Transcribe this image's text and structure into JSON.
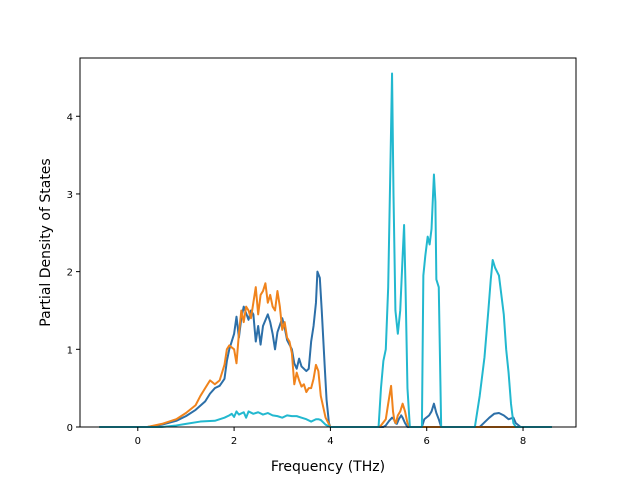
{
  "chart_data": {
    "type": "line",
    "title": "",
    "xlabel": "Frequency (THz)",
    "ylabel": "Partial Density of States",
    "xlim": [
      -1.2,
      9.1
    ],
    "ylim": [
      0,
      4.75
    ],
    "xticks": [
      0,
      2,
      4,
      6,
      8
    ],
    "yticks": [
      0,
      1,
      2,
      3,
      4
    ],
    "grid": false,
    "legend": "none",
    "series": [
      {
        "color": "#2c6fa8",
        "points": [
          [
            -0.8,
            0
          ],
          [
            0.2,
            0
          ],
          [
            0.5,
            0.03
          ],
          [
            0.8,
            0.08
          ],
          [
            1.0,
            0.14
          ],
          [
            1.2,
            0.22
          ],
          [
            1.4,
            0.33
          ],
          [
            1.5,
            0.43
          ],
          [
            1.6,
            0.5
          ],
          [
            1.7,
            0.53
          ],
          [
            1.8,
            0.62
          ],
          [
            1.85,
            0.85
          ],
          [
            1.9,
            1.0
          ],
          [
            2.0,
            1.2
          ],
          [
            2.05,
            1.42
          ],
          [
            2.1,
            1.15
          ],
          [
            2.15,
            1.4
          ],
          [
            2.2,
            1.55
          ],
          [
            2.3,
            1.38
          ],
          [
            2.35,
            1.5
          ],
          [
            2.4,
            1.45
          ],
          [
            2.45,
            1.1
          ],
          [
            2.5,
            1.3
          ],
          [
            2.55,
            1.06
          ],
          [
            2.6,
            1.3
          ],
          [
            2.7,
            1.45
          ],
          [
            2.75,
            1.35
          ],
          [
            2.8,
            1.2
          ],
          [
            2.85,
            1.0
          ],
          [
            2.9,
            1.22
          ],
          [
            3.0,
            1.4
          ],
          [
            3.05,
            1.28
          ],
          [
            3.1,
            1.12
          ],
          [
            3.2,
            1.0
          ],
          [
            3.25,
            0.82
          ],
          [
            3.3,
            0.75
          ],
          [
            3.35,
            0.88
          ],
          [
            3.4,
            0.78
          ],
          [
            3.5,
            0.72
          ],
          [
            3.55,
            0.75
          ],
          [
            3.6,
            1.1
          ],
          [
            3.65,
            1.3
          ],
          [
            3.7,
            1.6
          ],
          [
            3.73,
            2.0
          ],
          [
            3.78,
            1.92
          ],
          [
            3.82,
            1.5
          ],
          [
            3.88,
            0.8
          ],
          [
            3.92,
            0.35
          ],
          [
            3.97,
            0.05
          ],
          [
            4.0,
            0
          ],
          [
            5.1,
            0
          ],
          [
            5.15,
            0.02
          ],
          [
            5.22,
            0.08
          ],
          [
            5.28,
            0.12
          ],
          [
            5.32,
            0.1
          ],
          [
            5.35,
            0.05
          ],
          [
            5.38,
            0.04
          ],
          [
            5.42,
            0.1
          ],
          [
            5.47,
            0.15
          ],
          [
            5.5,
            0.12
          ],
          [
            5.55,
            0.05
          ],
          [
            5.6,
            0
          ],
          [
            5.9,
            0
          ],
          [
            5.95,
            0.1
          ],
          [
            6.05,
            0.15
          ],
          [
            6.1,
            0.2
          ],
          [
            6.15,
            0.3
          ],
          [
            6.2,
            0.18
          ],
          [
            6.25,
            0.1
          ],
          [
            6.3,
            0
          ],
          [
            7.0,
            0
          ],
          [
            7.1,
            0
          ],
          [
            7.2,
            0.06
          ],
          [
            7.3,
            0.12
          ],
          [
            7.4,
            0.17
          ],
          [
            7.5,
            0.18
          ],
          [
            7.6,
            0.15
          ],
          [
            7.7,
            0.1
          ],
          [
            7.8,
            0.12
          ],
          [
            7.85,
            0.05
          ],
          [
            7.95,
            0
          ],
          [
            8.6,
            0
          ]
        ]
      },
      {
        "color": "#f0831c",
        "points": [
          [
            -0.8,
            0
          ],
          [
            0.2,
            0
          ],
          [
            0.5,
            0.04
          ],
          [
            0.8,
            0.1
          ],
          [
            1.0,
            0.18
          ],
          [
            1.2,
            0.28
          ],
          [
            1.3,
            0.4
          ],
          [
            1.4,
            0.5
          ],
          [
            1.5,
            0.6
          ],
          [
            1.6,
            0.55
          ],
          [
            1.7,
            0.6
          ],
          [
            1.8,
            0.8
          ],
          [
            1.85,
            1.0
          ],
          [
            1.9,
            1.05
          ],
          [
            2.0,
            1.0
          ],
          [
            2.05,
            0.82
          ],
          [
            2.1,
            1.2
          ],
          [
            2.15,
            1.5
          ],
          [
            2.2,
            1.35
          ],
          [
            2.25,
            1.55
          ],
          [
            2.3,
            1.5
          ],
          [
            2.35,
            1.4
          ],
          [
            2.4,
            1.6
          ],
          [
            2.45,
            1.8
          ],
          [
            2.5,
            1.45
          ],
          [
            2.55,
            1.7
          ],
          [
            2.6,
            1.75
          ],
          [
            2.65,
            1.85
          ],
          [
            2.7,
            1.6
          ],
          [
            2.75,
            1.7
          ],
          [
            2.8,
            1.55
          ],
          [
            2.85,
            1.5
          ],
          [
            2.9,
            1.75
          ],
          [
            2.95,
            1.55
          ],
          [
            3.0,
            1.25
          ],
          [
            3.05,
            1.35
          ],
          [
            3.1,
            1.15
          ],
          [
            3.15,
            1.1
          ],
          [
            3.2,
            0.95
          ],
          [
            3.25,
            0.55
          ],
          [
            3.3,
            0.7
          ],
          [
            3.35,
            0.6
          ],
          [
            3.4,
            0.52
          ],
          [
            3.45,
            0.55
          ],
          [
            3.5,
            0.45
          ],
          [
            3.55,
            0.5
          ],
          [
            3.6,
            0.5
          ],
          [
            3.65,
            0.62
          ],
          [
            3.7,
            0.8
          ],
          [
            3.75,
            0.72
          ],
          [
            3.8,
            0.4
          ],
          [
            3.9,
            0.12
          ],
          [
            4.0,
            0
          ],
          [
            5.0,
            0
          ],
          [
            5.05,
            0.02
          ],
          [
            5.15,
            0.1
          ],
          [
            5.2,
            0.3
          ],
          [
            5.26,
            0.53
          ],
          [
            5.3,
            0.2
          ],
          [
            5.33,
            0.08
          ],
          [
            5.36,
            0.05
          ],
          [
            5.4,
            0.15
          ],
          [
            5.45,
            0.2
          ],
          [
            5.5,
            0.3
          ],
          [
            5.55,
            0.2
          ],
          [
            5.6,
            0.05
          ],
          [
            5.65,
            0
          ],
          [
            8.6,
            0
          ]
        ]
      },
      {
        "color": "#22b8cf",
        "points": [
          [
            -0.8,
            0
          ],
          [
            0.5,
            0
          ],
          [
            0.8,
            0.02
          ],
          [
            1.0,
            0.04
          ],
          [
            1.3,
            0.07
          ],
          [
            1.6,
            0.08
          ],
          [
            1.8,
            0.12
          ],
          [
            1.9,
            0.15
          ],
          [
            1.95,
            0.17
          ],
          [
            2.0,
            0.13
          ],
          [
            2.05,
            0.2
          ],
          [
            2.1,
            0.16
          ],
          [
            2.2,
            0.19
          ],
          [
            2.25,
            0.12
          ],
          [
            2.3,
            0.2
          ],
          [
            2.4,
            0.17
          ],
          [
            2.5,
            0.19
          ],
          [
            2.6,
            0.16
          ],
          [
            2.7,
            0.18
          ],
          [
            2.8,
            0.15
          ],
          [
            2.9,
            0.14
          ],
          [
            3.0,
            0.12
          ],
          [
            3.1,
            0.15
          ],
          [
            3.2,
            0.14
          ],
          [
            3.3,
            0.14
          ],
          [
            3.4,
            0.12
          ],
          [
            3.5,
            0.1
          ],
          [
            3.6,
            0.07
          ],
          [
            3.7,
            0.1
          ],
          [
            3.75,
            0.1
          ],
          [
            3.8,
            0.09
          ],
          [
            3.85,
            0.06
          ],
          [
            3.9,
            0.03
          ],
          [
            4.0,
            0
          ],
          [
            5.0,
            0
          ],
          [
            5.05,
            0.5
          ],
          [
            5.1,
            0.85
          ],
          [
            5.15,
            1.0
          ],
          [
            5.2,
            1.8
          ],
          [
            5.25,
            3.5
          ],
          [
            5.28,
            4.55
          ],
          [
            5.31,
            3.0
          ],
          [
            5.35,
            1.5
          ],
          [
            5.4,
            1.2
          ],
          [
            5.45,
            1.5
          ],
          [
            5.5,
            2.2
          ],
          [
            5.53,
            2.6
          ],
          [
            5.56,
            1.8
          ],
          [
            5.6,
            0.5
          ],
          [
            5.65,
            0
          ],
          [
            5.9,
            0
          ],
          [
            5.93,
            1.95
          ],
          [
            5.97,
            2.2
          ],
          [
            6.02,
            2.45
          ],
          [
            6.06,
            2.35
          ],
          [
            6.1,
            2.55
          ],
          [
            6.15,
            3.25
          ],
          [
            6.18,
            2.9
          ],
          [
            6.2,
            1.9
          ],
          [
            6.25,
            1.8
          ],
          [
            6.3,
            0
          ],
          [
            7.0,
            0
          ],
          [
            7.1,
            0.4
          ],
          [
            7.2,
            0.9
          ],
          [
            7.28,
            1.5
          ],
          [
            7.33,
            1.9
          ],
          [
            7.37,
            2.15
          ],
          [
            7.42,
            2.05
          ],
          [
            7.5,
            1.95
          ],
          [
            7.6,
            1.45
          ],
          [
            7.65,
            1.0
          ],
          [
            7.7,
            0.7
          ],
          [
            7.75,
            0.3
          ],
          [
            7.8,
            0.05
          ],
          [
            7.85,
            0
          ],
          [
            8.6,
            0
          ]
        ]
      }
    ]
  }
}
